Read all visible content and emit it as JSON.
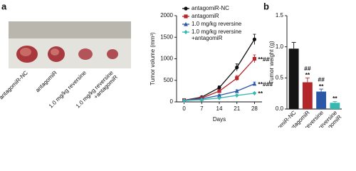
{
  "panels": [
    "a",
    "b"
  ],
  "photo": {
    "labels": [
      "antagomiR-NC",
      "antagomiR",
      "1.0 mg/kg reversine",
      "1.0 mg/kg reversine\n+antagomiR"
    ]
  },
  "chart_data": [
    {
      "type": "line",
      "x_label": "Days",
      "y_label": "Tumor volume (mm³)",
      "x": [
        0,
        7,
        14,
        21,
        28
      ],
      "xlim": [
        -3,
        31
      ],
      "xticks": [
        0,
        7,
        14,
        21,
        28
      ],
      "ylim": [
        0,
        2000
      ],
      "yticks": [
        0,
        500,
        1000,
        1500,
        2000
      ],
      "series": [
        {
          "name": "antagomiR-NC",
          "color": "#111111",
          "marker": "circle",
          "values": [
            40,
            110,
            330,
            800,
            1450
          ],
          "errors": [
            10,
            20,
            40,
            80,
            120
          ]
        },
        {
          "name": "antagomiR",
          "color": "#b3262a",
          "marker": "square",
          "values": [
            40,
            90,
            250,
            550,
            1000
          ],
          "errors": [
            10,
            15,
            30,
            60,
            90
          ],
          "annotation": "**##"
        },
        {
          "name": "1.0 mg/kg reversine",
          "color": "#2b58a6",
          "marker": "triangle",
          "values": [
            40,
            70,
            150,
            250,
            420
          ],
          "errors": [
            8,
            10,
            20,
            30,
            40
          ],
          "annotation": "**###"
        },
        {
          "name": "1.0 mg/kg reversine\n+antagomiR",
          "color": "#35b8b0",
          "marker": "diamond",
          "values": [
            30,
            50,
            90,
            150,
            200
          ],
          "errors": [
            5,
            8,
            12,
            20,
            25
          ],
          "annotation": "**"
        }
      ]
    },
    {
      "type": "bar",
      "y_label": "Tumor weight (g)",
      "categories": [
        "antagomiR-NC",
        "antagomiR",
        "1.0 mg/kg reversine",
        "1.0 mg/kg reversine\n+antagomiR"
      ],
      "values": [
        0.97,
        0.43,
        0.28,
        0.1
      ],
      "errors": [
        0.1,
        0.07,
        0.04,
        0.02
      ],
      "colors": [
        "#141414",
        "#b3262a",
        "#2b58a6",
        "#35b8b0"
      ],
      "annotations": [
        null,
        "##\n**",
        "##\n**",
        "**"
      ],
      "ylim": [
        0,
        1.5
      ],
      "yticks": [
        {
          "value": 0,
          "label": "0.0"
        },
        {
          "value": 0.5,
          "label": "0.5"
        },
        {
          "value": 1,
          "label": "1.0"
        },
        {
          "value": 1.5,
          "label": "1.5"
        }
      ]
    }
  ]
}
